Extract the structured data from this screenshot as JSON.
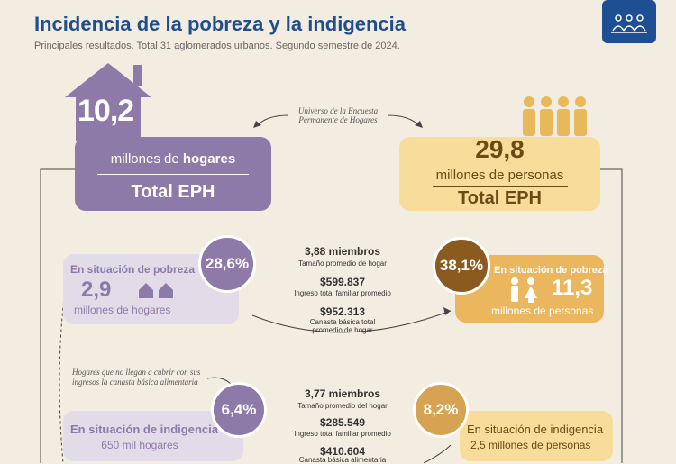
{
  "header": {
    "title": "Incidencia de la pobreza y la indigencia",
    "subtitle": "Principales resultados. Total 31 aglomerados urbanos. Segundo semestre de 2024."
  },
  "universe_note": [
    "Universo de la Encuesta",
    "Permanente de Hogares"
  ],
  "households": {
    "number": "10,2",
    "label_prefix": "millones de",
    "label_bold": "hogares",
    "total": "Total EPH"
  },
  "persons": {
    "number": "29,8",
    "label": "millones de personas",
    "total": "Total EPH"
  },
  "poverty": {
    "households": {
      "label": "En situación de pobreza",
      "percent": "28,6%",
      "number": "2,9",
      "unit": "millones de hogares"
    },
    "stats": {
      "members": "3,88 miembros",
      "members_label": "Tamaño promedio de hogar",
      "income": "$599.837",
      "income_label": "Ingreso total familiar promedio",
      "basket": "$952.313",
      "basket_label": [
        "Canasta básica total",
        "promedio de hogar"
      ]
    },
    "persons": {
      "percent": "38,1%",
      "label": "En situación de pobreza",
      "number": "11,3",
      "unit": "millones de personas"
    }
  },
  "indigence_note": "Hogares que no llegan a cubrir con sus ingresos la canasta básica alimentaria",
  "indigence": {
    "households": {
      "percent": "6,4%",
      "label": "En situación de indigencia",
      "number": "650 mil hogares"
    },
    "stats": {
      "members": "3,77 miembros",
      "members_label": "Tamaño promedio del hogar",
      "income": "$285.549",
      "income_label": "Ingreso total familiar promedio",
      "basket": "$410.604",
      "basket_label": "Canasta básica alimentaria"
    },
    "persons": {
      "percent": "8,2%",
      "label": "En situación de indigencia",
      "number": "2,5 millones de personas"
    }
  }
}
